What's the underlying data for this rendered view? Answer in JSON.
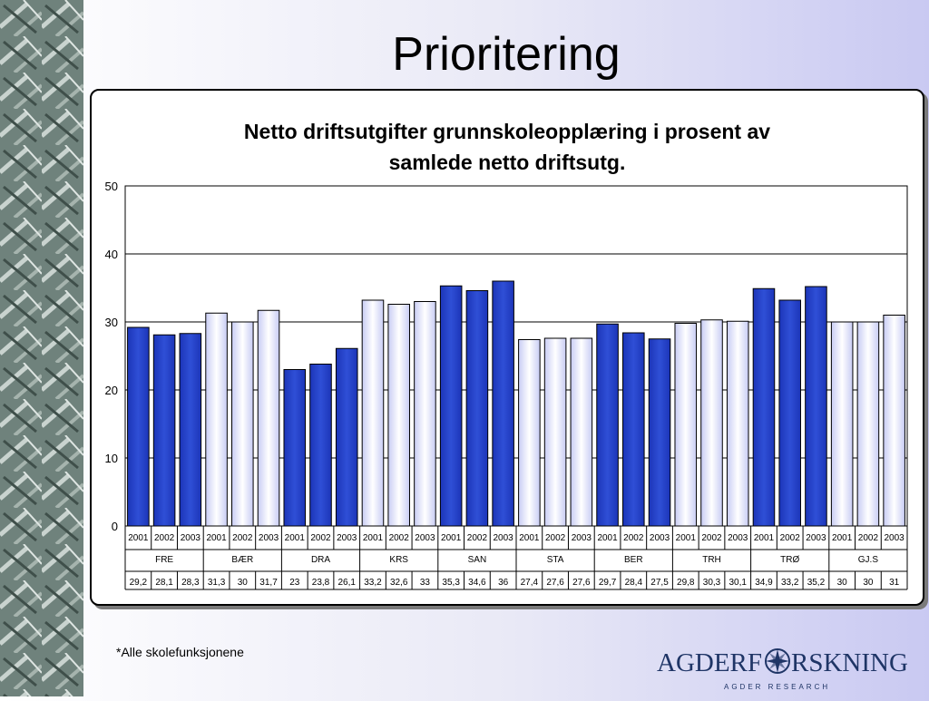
{
  "slide": {
    "title": "Prioritering",
    "footnote": "*Alle skolefunksjonene"
  },
  "logo": {
    "text": "AGDERFORSKNING",
    "subtext": "AGDER RESEARCH"
  },
  "colors": {
    "blue_series": "#2f4fd6",
    "light_series": "#e4e6fb",
    "grid": "#000000"
  },
  "chart_data": {
    "type": "bar",
    "title": "Netto driftsutgifter grunnskoleopplæring i prosent av samlede netto driftsutg.",
    "title_lines": [
      "Netto driftsutgifter grunnskoleopplæring i prosent av",
      "samlede netto driftsutg."
    ],
    "ylim": [
      0,
      50
    ],
    "yticks": [
      "0",
      "10",
      "20",
      "30",
      "40",
      "50"
    ],
    "grid": true,
    "groups": [
      {
        "name": "FRE",
        "style": "blue",
        "years": [
          "2001",
          "2002",
          "2003"
        ],
        "values": [
          29.2,
          28.1,
          28.3
        ],
        "labels": [
          "29,2",
          "28,1",
          "28,3"
        ]
      },
      {
        "name": "BÆR",
        "style": "light",
        "years": [
          "2001",
          "2002",
          "2003"
        ],
        "values": [
          31.3,
          30,
          31.7
        ],
        "labels": [
          "31,3",
          "30",
          "31,7"
        ]
      },
      {
        "name": "DRA",
        "style": "blue",
        "years": [
          "2001",
          "2002",
          "2003"
        ],
        "values": [
          23,
          23.8,
          26.1
        ],
        "labels": [
          "23",
          "23,8",
          "26,1"
        ]
      },
      {
        "name": "KRS",
        "style": "light",
        "years": [
          "2001",
          "2002",
          "2003"
        ],
        "values": [
          33.2,
          32.6,
          33
        ],
        "labels": [
          "33,2",
          "32,6",
          "33"
        ]
      },
      {
        "name": "SAN",
        "style": "blue",
        "years": [
          "2001",
          "2002",
          "2003"
        ],
        "values": [
          35.3,
          34.6,
          36
        ],
        "labels": [
          "35,3",
          "34,6",
          "36"
        ]
      },
      {
        "name": "STA",
        "style": "light",
        "years": [
          "2001",
          "2002",
          "2003"
        ],
        "values": [
          27.4,
          27.6,
          27.6
        ],
        "labels": [
          "27,4",
          "27,6",
          "27,6"
        ]
      },
      {
        "name": "BER",
        "style": "blue",
        "years": [
          "2001",
          "2002",
          "2003"
        ],
        "values": [
          29.7,
          28.4,
          27.5
        ],
        "labels": [
          "29,7",
          "28,4",
          "27,5"
        ]
      },
      {
        "name": "TRH",
        "style": "light",
        "years": [
          "2001",
          "2002",
          "2003"
        ],
        "values": [
          29.8,
          30.3,
          30.1
        ],
        "labels": [
          "29,8",
          "30,3",
          "30,1"
        ]
      },
      {
        "name": "TRØ",
        "style": "blue",
        "years": [
          "2001",
          "2002",
          "2003"
        ],
        "values": [
          34.9,
          33.2,
          35.2
        ],
        "labels": [
          "34,9",
          "33,2",
          "35,2"
        ]
      },
      {
        "name": "GJ.S",
        "style": "light",
        "years": [
          "2001",
          "2002",
          "2003"
        ],
        "values": [
          30,
          30,
          31
        ],
        "labels": [
          "30",
          "30",
          "31"
        ]
      }
    ]
  }
}
